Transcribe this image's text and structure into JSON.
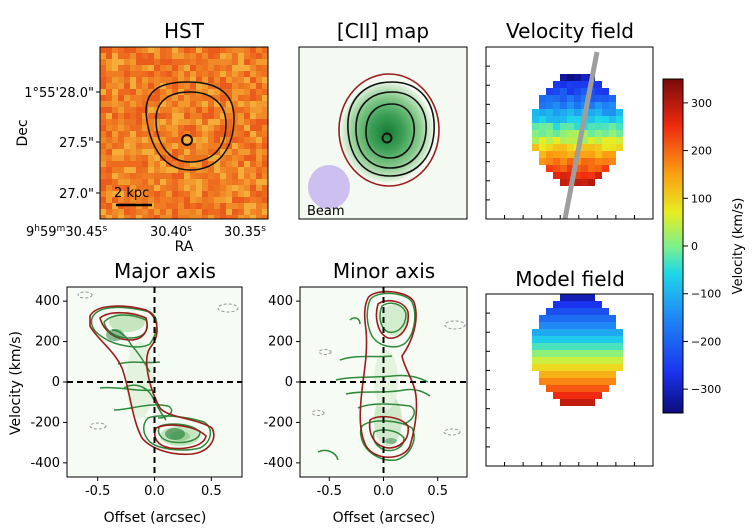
{
  "chart_data": [
    {
      "type": "heatmap",
      "id": "hst",
      "title": "HST",
      "xlabel": "RA",
      "ylabel": "Dec",
      "x_ticks": {
        "left": "9h59m30.45s",
        "mid": "30.40s",
        "right": "30.35s"
      },
      "y_ticks": [
        "1°55'28.0\"",
        "27.5\"",
        "27.0\""
      ],
      "scalebar_label": "2 kpc",
      "contour_levels": 3
    },
    {
      "type": "heatmap",
      "id": "cii",
      "title": "[CII] map",
      "beam_label": "Beam",
      "contour_levels": 4
    },
    {
      "type": "heatmap",
      "id": "velocity-field",
      "title": "Velocity field",
      "colorbar": {
        "label": "Velocity (km/s)",
        "ticks": [
          300,
          200,
          100,
          0,
          -100,
          -200,
          -300
        ],
        "tick_labels": [
          "300",
          "200",
          "100",
          "0",
          "−100",
          "−200",
          "−300"
        ],
        "range": [
          -350,
          350
        ]
      }
    },
    {
      "type": "heatmap",
      "id": "model-field",
      "title": "Model field"
    },
    {
      "type": "area",
      "id": "major-axis-pv",
      "title": "Major axis",
      "xlabel": "Offset (arcsec)",
      "ylabel": "Velocity (km/s)",
      "x_ticks": [
        "-0.5",
        "0.0",
        "0.5"
      ],
      "x_tick_values": [
        -0.5,
        0.0,
        0.5
      ],
      "y_ticks": [
        "400",
        "200",
        "0",
        "-200",
        "-400"
      ],
      "y_tick_values": [
        400,
        200,
        0,
        -200,
        -400
      ],
      "xlim": [
        -0.77,
        0.77
      ],
      "ylim": [
        -470,
        470
      ],
      "emission_peaks": [
        {
          "offset": -0.27,
          "velocity": 290
        },
        {
          "offset": 0.18,
          "velocity": -290
        }
      ]
    },
    {
      "type": "area",
      "id": "minor-axis-pv",
      "title": "Minor axis",
      "xlabel": "Offset (arcsec)",
      "x_ticks": [
        "-0.5",
        "0.0",
        "0.5"
      ],
      "x_tick_values": [
        -0.5,
        0.0,
        0.5
      ],
      "y_ticks": [
        "400",
        "200",
        "0",
        "-200",
        "-400"
      ],
      "y_tick_values": [
        400,
        200,
        0,
        -200,
        -400
      ],
      "xlim": [
        -0.77,
        0.77
      ],
      "ylim": [
        -470,
        470
      ],
      "emission_peaks": [
        {
          "offset": 0.1,
          "velocity": 270
        },
        {
          "offset": 0.05,
          "velocity": -240
        }
      ]
    }
  ]
}
